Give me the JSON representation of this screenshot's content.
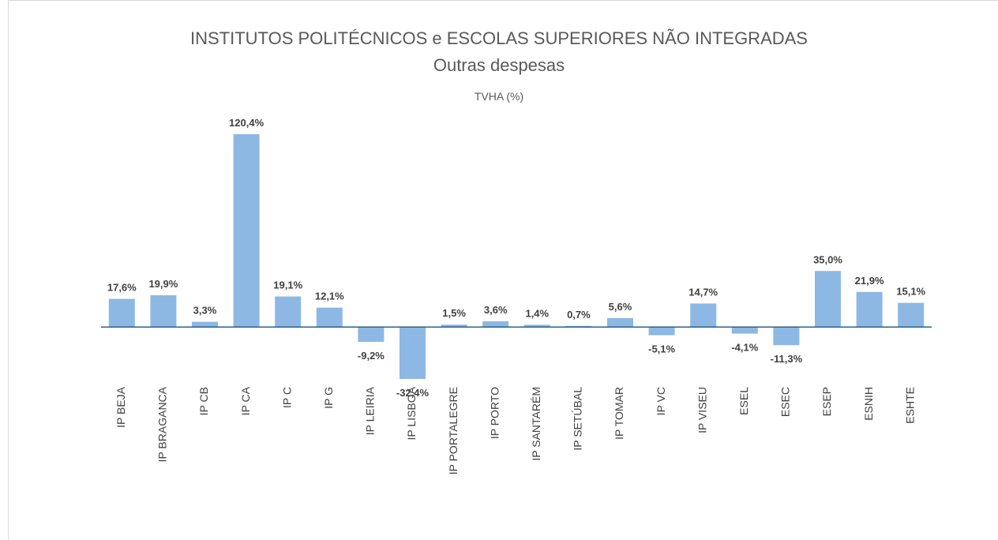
{
  "chart_data": {
    "type": "bar",
    "title": "INSTITUTOS POLITÉCNICOS e ESCOLAS SUPERIORES NÃO INTEGRADAS",
    "subtitle": "Outras despesas",
    "axis_label": "TVHA (%)",
    "categories": [
      "IP BEJA",
      "IP BRAGANCA",
      "IP CB",
      "IP CA",
      "IP C",
      "IP G",
      "IP LEIRIA",
      "IP LISBOA",
      "IP PORTALEGRE",
      "IP PORTO",
      "IP SANTARÉM",
      "IP SETÚBAL",
      "IP TOMAR",
      "IP VC",
      "IP VISEU",
      "ESEL",
      "ESEC",
      "ESEP",
      "ESNIH",
      "ESHTE"
    ],
    "values": [
      17.6,
      19.9,
      3.3,
      120.4,
      19.1,
      12.1,
      -9.2,
      -32.4,
      1.5,
      3.6,
      1.4,
      0.7,
      5.6,
      -5.1,
      14.7,
      -4.1,
      -11.3,
      35.0,
      21.9,
      15.1
    ],
    "value_labels": [
      "17,6%",
      "19,9%",
      "3,3%",
      "120,4%",
      "19,1%",
      "12,1%",
      "-9,2%",
      "-32,4%",
      "1,5%",
      "3,6%",
      "1,4%",
      "0,7%",
      "5,6%",
      "-5,1%",
      "14,7%",
      "-4,1%",
      "-11,3%",
      "35,0%",
      "21,9%",
      "15,1%"
    ],
    "color": "#8db8e3"
  }
}
